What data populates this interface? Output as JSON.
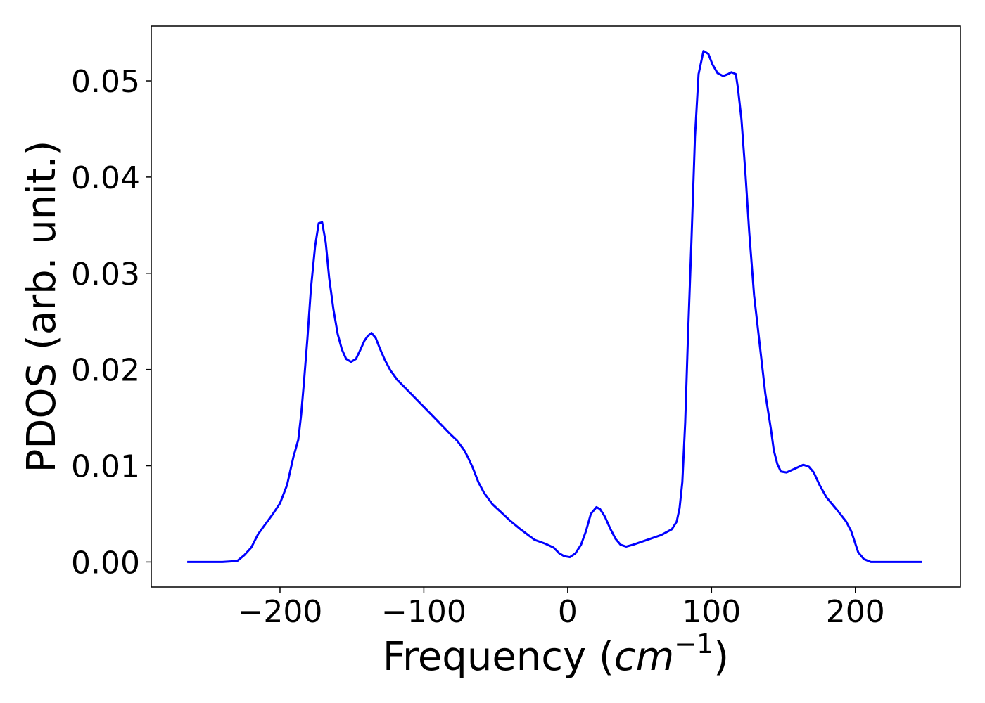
{
  "chart_data": {
    "type": "line",
    "xlabel": [
      "Frequency (",
      "cm",
      "−1",
      ")"
    ],
    "ylabel": "PDOS (arb. unit.)",
    "xlim": [
      -289.5,
      273
    ],
    "ylim": [
      -0.0026,
      0.0557
    ],
    "xticks": [
      {
        "value": -200,
        "label": "−200"
      },
      {
        "value": -100,
        "label": "−100"
      },
      0,
      100,
      200
    ],
    "yticks": [
      {
        "value": 0,
        "label": "0.00"
      },
      0.01,
      0.02,
      0.03,
      0.04,
      0.05
    ],
    "grid": false,
    "x": [
      -264.5,
      -240.1,
      -229.8,
      -224.9,
      -220.0,
      -215.2,
      -210.3,
      -204.9,
      -200.0,
      -195.1,
      -190.7,
      -187.3,
      -185.3,
      -183.4,
      -180.9,
      -178.5,
      -175.6,
      -173.1,
      -170.7,
      -168.2,
      -165.8,
      -162.8,
      -159.9,
      -157.0,
      -154.0,
      -150.6,
      -147.2,
      -144.3,
      -141.3,
      -138.9,
      -136.4,
      -133.5,
      -130.6,
      -127.1,
      -123.2,
      -118.3,
      -111.0,
      -101.2,
      -91.4,
      -81.7,
      -76.8,
      -71.9,
      -69.4,
      -66.0,
      -62.1,
      -58.2,
      -52.3,
      -46.5,
      -40.1,
      -32.8,
      -23.0,
      -15.6,
      -9.8,
      -5.9,
      -2.4,
      1.5,
      5.4,
      9.3,
      12.7,
      16.1,
      20.0,
      22.5,
      25.9,
      29.8,
      33.3,
      36.7,
      40.6,
      45.5,
      55.3,
      65.0,
      72.4,
      75.8,
      77.8,
      79.7,
      81.7,
      83.6,
      86.1,
      88.5,
      91.0,
      94.4,
      97.8,
      100.7,
      104.2,
      108.1,
      111.5,
      113.9,
      116.9,
      118.3,
      120.8,
      123.7,
      126.2,
      129.6,
      133.5,
      137.4,
      141.3,
      143.3,
      145.7,
      148.2,
      152.1,
      158.0,
      163.8,
      167.7,
      171.1,
      175.1,
      180.0,
      187.3,
      193.6,
      197.1,
      202.0,
      205.9,
      210.8,
      246.5
    ],
    "series": [
      {
        "name": "PDOS",
        "color": "#0000ff",
        "values": [
          0,
          0,
          0.0001,
          0.0007,
          0.0015,
          0.0029,
          0.0039,
          0.005,
          0.0061,
          0.008,
          0.0109,
          0.0127,
          0.0153,
          0.0186,
          0.0233,
          0.0284,
          0.0328,
          0.0352,
          0.0353,
          0.0332,
          0.0295,
          0.0262,
          0.0237,
          0.0221,
          0.0211,
          0.0208,
          0.0211,
          0.022,
          0.023,
          0.0235,
          0.0238,
          0.0233,
          0.0222,
          0.021,
          0.0199,
          0.0189,
          0.0178,
          0.0163,
          0.0148,
          0.0133,
          0.0126,
          0.0116,
          0.0109,
          0.0098,
          0.0083,
          0.0072,
          0.006,
          0.0052,
          0.0043,
          0.0034,
          0.0023,
          0.0019,
          0.0015,
          0.0009,
          0.0006,
          0.0005,
          0.0009,
          0.0018,
          0.0032,
          0.005,
          0.0057,
          0.0055,
          0.0047,
          0.0034,
          0.0024,
          0.0018,
          0.0016,
          0.0018,
          0.0023,
          0.0028,
          0.0034,
          0.0042,
          0.0056,
          0.0083,
          0.0145,
          0.0233,
          0.0336,
          0.0442,
          0.0507,
          0.0531,
          0.0528,
          0.0517,
          0.0508,
          0.0505,
          0.0507,
          0.0509,
          0.0507,
          0.0493,
          0.046,
          0.0401,
          0.0343,
          0.0277,
          0.0226,
          0.0175,
          0.0138,
          0.0116,
          0.0102,
          0.0094,
          0.0093,
          0.0097,
          0.0101,
          0.0099,
          0.0093,
          0.008,
          0.0067,
          0.0054,
          0.0042,
          0.0032,
          0.001,
          0.0003,
          0,
          0
        ]
      }
    ]
  }
}
